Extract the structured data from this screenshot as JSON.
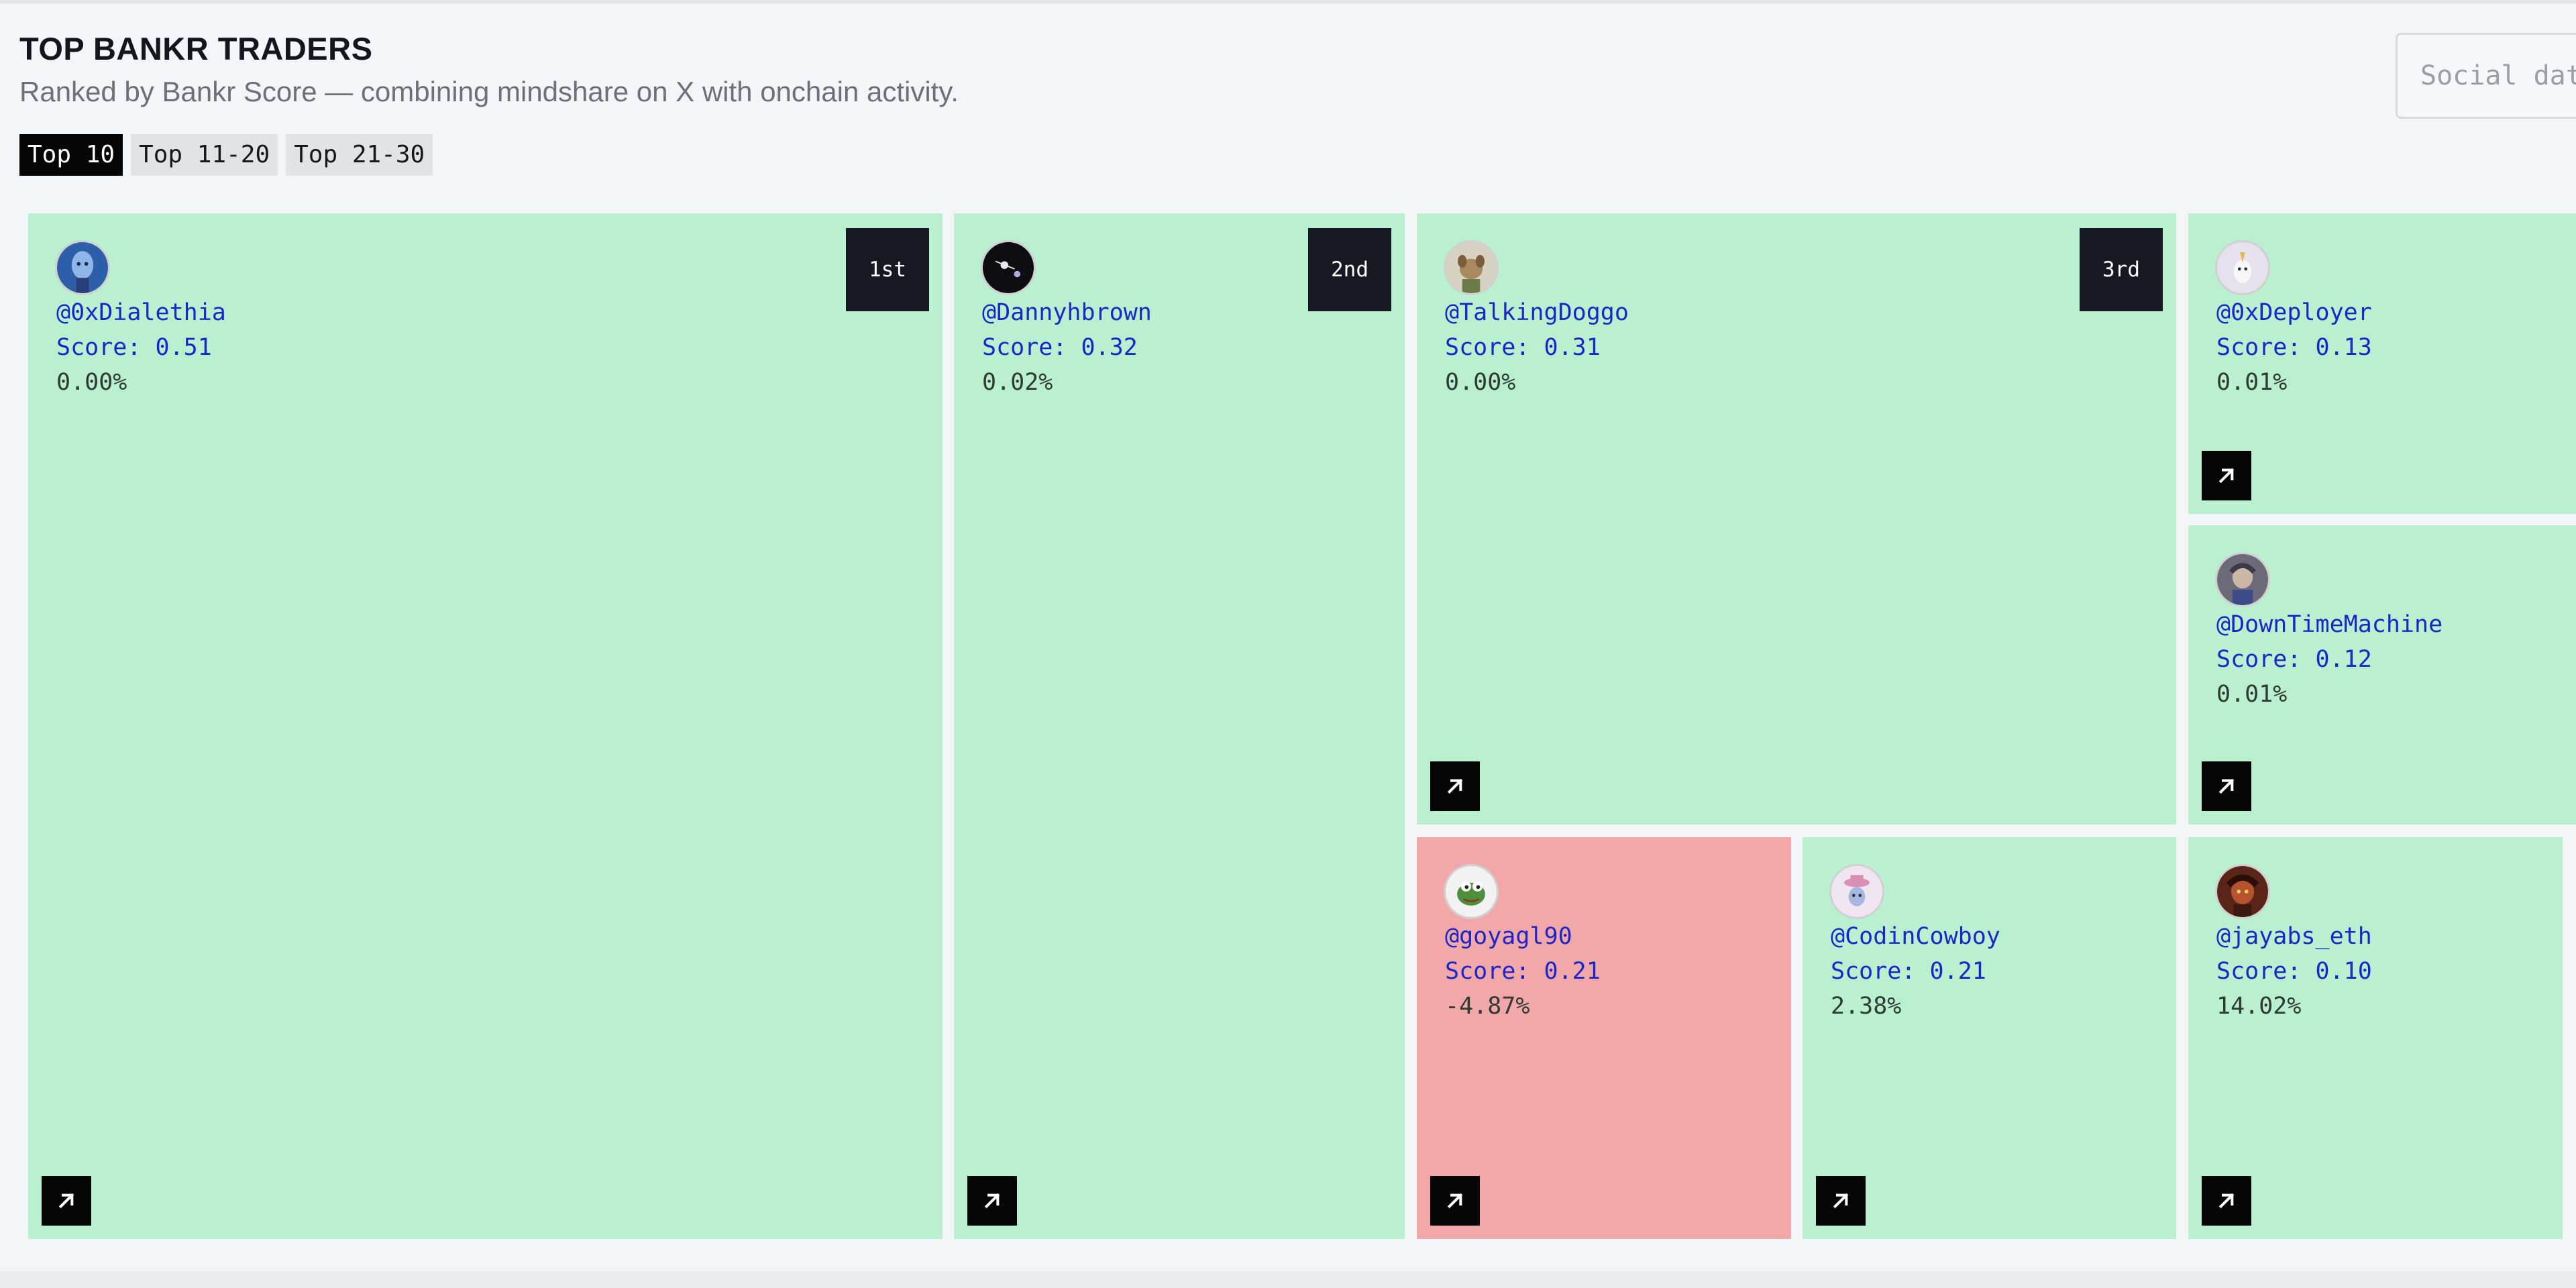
{
  "header": {
    "title": "TOP BANKR TRADERS",
    "subtitle": "Ranked by Bankr Score — combining mindshare on X with onchain activity."
  },
  "tabs": [
    {
      "label": "Top 10",
      "active": true
    },
    {
      "label": "Top 11-20",
      "active": false
    },
    {
      "label": "Top 21-30",
      "active": false
    }
  ],
  "search": {
    "placeholder": "Social data"
  },
  "colors": {
    "positive_tile": "#b8f0d0",
    "negative_tile": "#f2a8a8",
    "link_text": "#1c25c8",
    "rank_badge": "#161823"
  },
  "traders": [
    {
      "handle": "@0xDialethia",
      "score": "Score: 0.51",
      "change": "0.00%",
      "rank": "1st",
      "trend": "positive",
      "avatar": "avatar-0xdialethia"
    },
    {
      "handle": "@Dannyhbrown",
      "score": "Score: 0.32",
      "change": "0.02%",
      "rank": "2nd",
      "trend": "positive",
      "avatar": "avatar-dannyhbrown"
    },
    {
      "handle": "@TalkingDoggo",
      "score": "Score: 0.31",
      "change": "0.00%",
      "rank": "3rd",
      "trend": "positive",
      "avatar": "avatar-talkingdoggo"
    },
    {
      "handle": "@0xDeployer",
      "score": "Score: 0.13",
      "change": "0.01%",
      "rank": "",
      "trend": "positive",
      "avatar": "avatar-0xdeployer"
    },
    {
      "handle": "@DownTimeMachine",
      "score": "Score: 0.12",
      "change": "0.01%",
      "rank": "",
      "trend": "positive",
      "avatar": "avatar-downtimemachine"
    },
    {
      "handle": "@goyagl90",
      "score": "Score: 0.21",
      "change": "-4.87%",
      "rank": "",
      "trend": "negative",
      "avatar": "avatar-goyagl90"
    },
    {
      "handle": "@CodinCowboy",
      "score": "Score: 0.21",
      "change": "2.38%",
      "rank": "",
      "trend": "positive",
      "avatar": "avatar-codincowboy"
    },
    {
      "handle": "@jayabs_eth",
      "score": "Score: 0.10",
      "change": "14.02%",
      "rank": "",
      "trend": "positive",
      "avatar": "avatar-jayabs-eth"
    }
  ]
}
